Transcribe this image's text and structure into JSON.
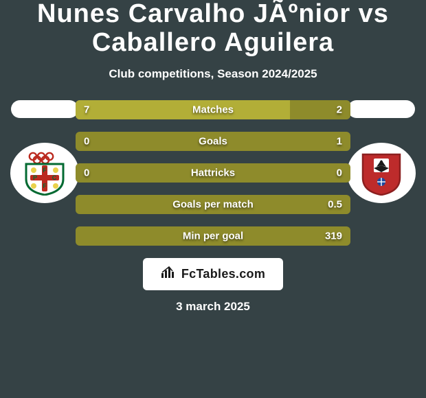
{
  "background_color": "#354245",
  "title": {
    "text": "Nunes Carvalho JÃºnior vs Caballero Aguilera",
    "color": "#ffffff",
    "fontsize": 38,
    "weight": "900"
  },
  "subtitle": {
    "text": "Club competitions, Season 2024/2025",
    "color": "#ffffff",
    "fontsize": 17,
    "weight": "700"
  },
  "bars_style": {
    "base_color": "#8e8b2b",
    "fill_color": "#b2ae37",
    "value_fontsize": 15,
    "label_fontsize": 15,
    "text_color": "#ffffff"
  },
  "bars": [
    {
      "label": "Matches",
      "left": "7",
      "right": "2",
      "fill_ratio": 0.78
    },
    {
      "label": "Goals",
      "left": "0",
      "right": "1",
      "fill_ratio": 0.0
    },
    {
      "label": "Hattricks",
      "left": "0",
      "right": "0",
      "fill_ratio": 0.0
    },
    {
      "label": "Goals per match",
      "left": "",
      "right": "0.5",
      "fill_ratio": 0.0
    },
    {
      "label": "Min per goal",
      "left": "",
      "right": "319",
      "fill_ratio": 0.0
    }
  ],
  "crest_left": {
    "rings_color": "#bb2a1f",
    "shield_fill": "#ffffff",
    "shield_stroke": "#036a32",
    "cross_color": "#bb2a1f",
    "ball_color": "#e9d14b",
    "letters_color": "#036a32"
  },
  "crest_right": {
    "shield_fill": "#bd2b2b",
    "shield_stroke": "#8c1f1f",
    "eagle_color": "#1a1a1a",
    "center_bg": "#ffffff",
    "accent": "#1b4aa0"
  },
  "watermark": {
    "text": "FcTables.com",
    "bg": "#ffffff",
    "color": "#1a1a1a",
    "fontsize": 18
  },
  "date": {
    "text": "3 march 2025",
    "color": "#ffffff",
    "fontsize": 17
  }
}
